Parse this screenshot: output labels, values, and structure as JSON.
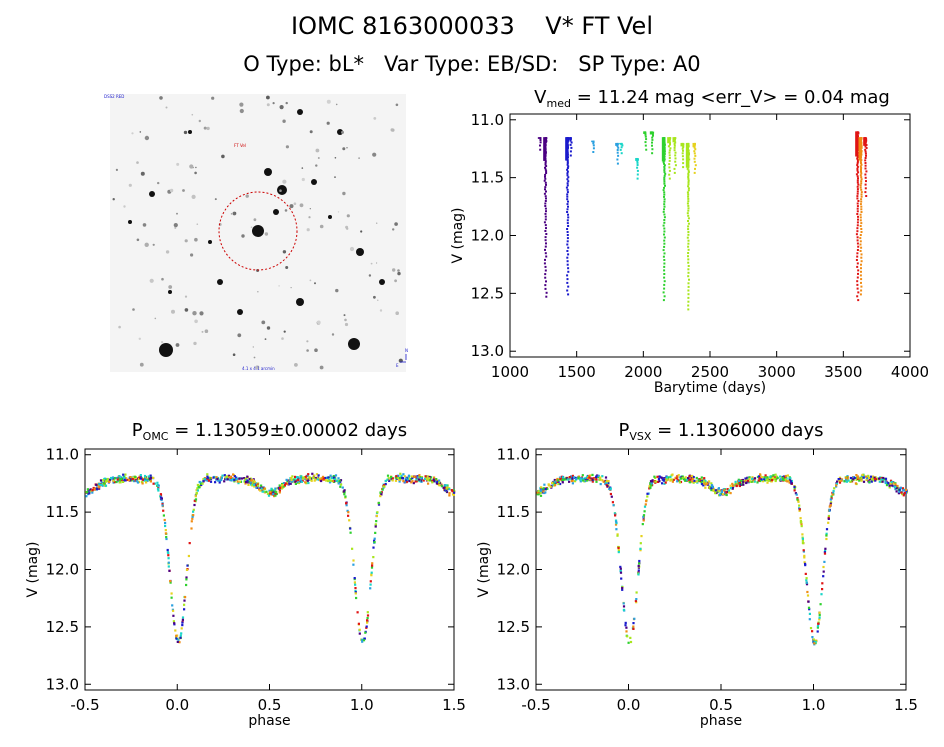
{
  "header": {
    "title_line1": "IOMC 8163000033    V* FT Vel",
    "title_line2": "O Type: bL*   Var Type: EB/SD:   SP Type: A0"
  },
  "image_panel": {
    "top_left_label": "DSS2 RED",
    "target_label": "FT Vel",
    "bottom_label": "4.1 x 4.1 arcmin",
    "north_label": "N",
    "east_label": "E"
  },
  "colors": {
    "rainbow": [
      "#4b0082",
      "#1a1acc",
      "#2aa0e0",
      "#19d6c8",
      "#2ed12e",
      "#a8e61e",
      "#e6d21e",
      "#f08c14",
      "#e01414"
    ],
    "circle": "#cc0000"
  },
  "chart_data": [
    {
      "id": "lc",
      "type": "scatter",
      "title_main": "V",
      "title_sub": "med",
      "title_rest": " = 11.24 mag <err_V> = 0.04 mag",
      "xlabel": "Barytime (days)",
      "ylabel": "V (mag)",
      "xlim": [
        1000,
        4000
      ],
      "ylim": [
        13.05,
        10.95
      ],
      "xticks": [
        1000,
        1500,
        2000,
        2500,
        3000,
        3500,
        4000
      ],
      "yticks": [
        "11.0",
        "11.5",
        "12.0",
        "12.5",
        "13.0"
      ],
      "series": [
        {
          "x": 1220,
          "ymin": 11.15,
          "ymax": 11.25,
          "color": 0
        },
        {
          "x": 1260,
          "ymin": 11.15,
          "ymax": 12.52,
          "color": 0
        },
        {
          "x": 1425,
          "ymin": 11.15,
          "ymax": 12.5,
          "color": 1
        },
        {
          "x": 1450,
          "ymin": 11.15,
          "ymax": 11.3,
          "color": 1
        },
        {
          "x": 1620,
          "ymin": 11.18,
          "ymax": 11.27,
          "color": 2
        },
        {
          "x": 1800,
          "ymin": 11.2,
          "ymax": 11.37,
          "color": 2
        },
        {
          "x": 1830,
          "ymin": 11.2,
          "ymax": 11.28,
          "color": 3
        },
        {
          "x": 1950,
          "ymin": 11.33,
          "ymax": 11.5,
          "color": 3
        },
        {
          "x": 2010,
          "ymin": 11.1,
          "ymax": 11.25,
          "color": 4
        },
        {
          "x": 2060,
          "ymin": 11.1,
          "ymax": 11.28,
          "color": 4
        },
        {
          "x": 2150,
          "ymin": 11.15,
          "ymax": 12.55,
          "color": 4
        },
        {
          "x": 2190,
          "ymin": 11.15,
          "ymax": 11.5,
          "color": 5
        },
        {
          "x": 2230,
          "ymin": 11.15,
          "ymax": 11.45,
          "color": 5
        },
        {
          "x": 2290,
          "ymin": 11.2,
          "ymax": 11.4,
          "color": 5
        },
        {
          "x": 2330,
          "ymin": 11.2,
          "ymax": 12.63,
          "color": 5
        },
        {
          "x": 2380,
          "ymin": 11.2,
          "ymax": 11.45,
          "color": 6
        },
        {
          "x": 3600,
          "ymin": 11.1,
          "ymax": 12.55,
          "color": 8
        },
        {
          "x": 3625,
          "ymin": 11.15,
          "ymax": 12.5,
          "color": 7
        },
        {
          "x": 3660,
          "ymin": 11.15,
          "ymax": 11.65,
          "color": 8
        }
      ]
    },
    {
      "id": "phase_omc",
      "type": "scatter",
      "title_main": "P",
      "title_sub": "OMC",
      "title_rest": " = 1.13059±0.00002 days",
      "xlabel": "phase",
      "ylabel": "V (mag)",
      "xlim": [
        -0.5,
        1.5
      ],
      "ylim": [
        13.05,
        10.95
      ],
      "xticks": [
        "-0.5",
        "0.0",
        "0.5",
        "1.0",
        "1.5"
      ],
      "yticks": [
        "11.0",
        "11.5",
        "12.0",
        "12.5",
        "13.0"
      ],
      "model": {
        "base": 11.2,
        "primary_depth": 1.42,
        "primary_width": 0.045,
        "secondary_depth": 0.12,
        "secondary_width": 0.06
      }
    },
    {
      "id": "phase_vsx",
      "type": "scatter",
      "title_main": "P",
      "title_sub": "VSX",
      "title_rest": " = 1.1306000 days",
      "xlabel": "phase",
      "ylabel": "V (mag)",
      "xlim": [
        -0.5,
        1.5
      ],
      "ylim": [
        13.05,
        10.95
      ],
      "xticks": [
        "-0.5",
        "0.0",
        "0.5",
        "1.0",
        "1.5"
      ],
      "yticks": [
        "11.0",
        "11.5",
        "12.0",
        "12.5",
        "13.0"
      ],
      "model": {
        "base": 11.2,
        "primary_depth": 1.42,
        "primary_width": 0.045,
        "secondary_depth": 0.12,
        "secondary_width": 0.06
      }
    }
  ]
}
